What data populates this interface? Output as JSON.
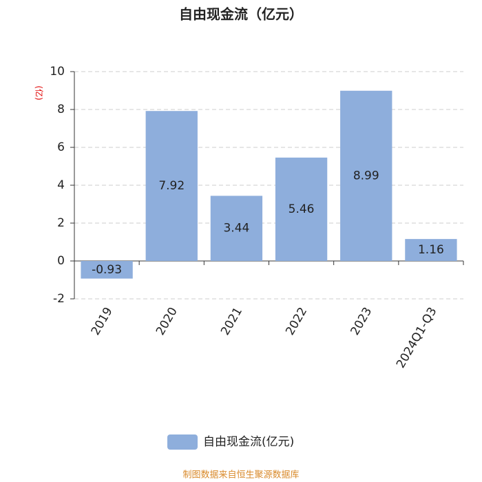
{
  "chart_data": {
    "type": "bar",
    "title": "自由现金流（亿元）",
    "y_label": "(亿)",
    "categories": [
      "2019",
      "2020",
      "2021",
      "2022",
      "2023",
      "2024Q1-Q3"
    ],
    "series": [
      {
        "name": "自由现金流(亿元)",
        "color": "#8eaedc",
        "values": [
          -0.93,
          7.92,
          3.44,
          5.46,
          8.99,
          1.16
        ]
      }
    ],
    "ylim": [
      -2,
      10
    ],
    "yticks": [
      -2,
      0,
      2,
      4,
      6,
      8,
      10
    ],
    "grid": true,
    "source": "制图数据来自恒生聚源数据库"
  }
}
